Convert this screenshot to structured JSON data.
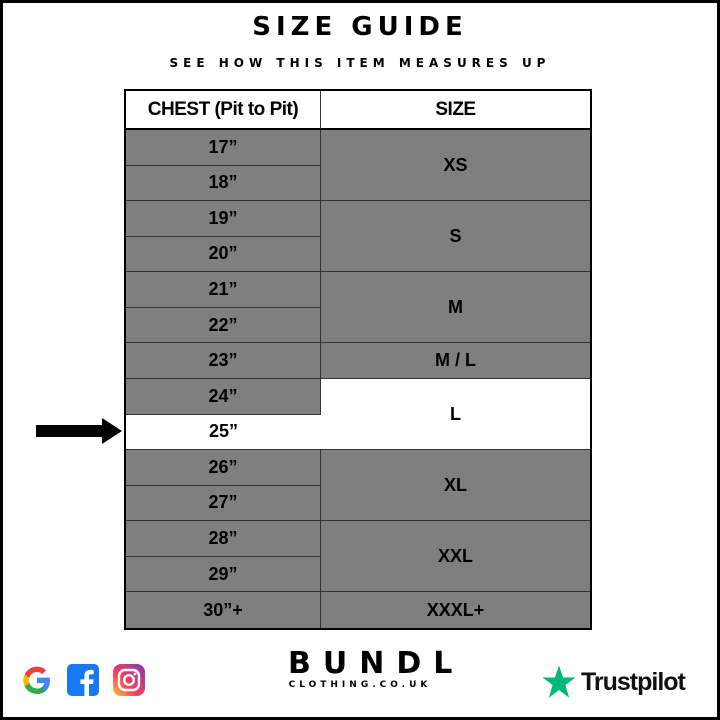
{
  "header": {
    "title": "SIZE GUIDE",
    "subtitle": "SEE HOW THIS ITEM MEASURES UP"
  },
  "table": {
    "columns": [
      "CHEST (Pit to Pit)",
      "SIZE"
    ],
    "chest": [
      "17”",
      "18”",
      "19”",
      "20”",
      "21”",
      "22”",
      "23”",
      "24”",
      "25”",
      "26”",
      "27”",
      "28”",
      "29”",
      "30”+"
    ],
    "sizes": [
      "XS",
      "S",
      "M",
      "M / L",
      "L",
      "XL",
      "XXL",
      "XXXL+"
    ],
    "highlighted_chest": "25”",
    "highlighted_size": "L"
  },
  "colors": {
    "row_fill": "#7f7f7f",
    "highlight": "#ffffff",
    "trustpilot_green": "#00b67a",
    "facebook_blue": "#1877f2"
  },
  "footer": {
    "brand": "BUNDL",
    "brand_sub": "CLOTHING.CO.UK",
    "trustpilot": "Trustpilot",
    "icons": [
      "google-icon",
      "facebook-icon",
      "instagram-icon",
      "trustpilot-star-icon"
    ]
  }
}
